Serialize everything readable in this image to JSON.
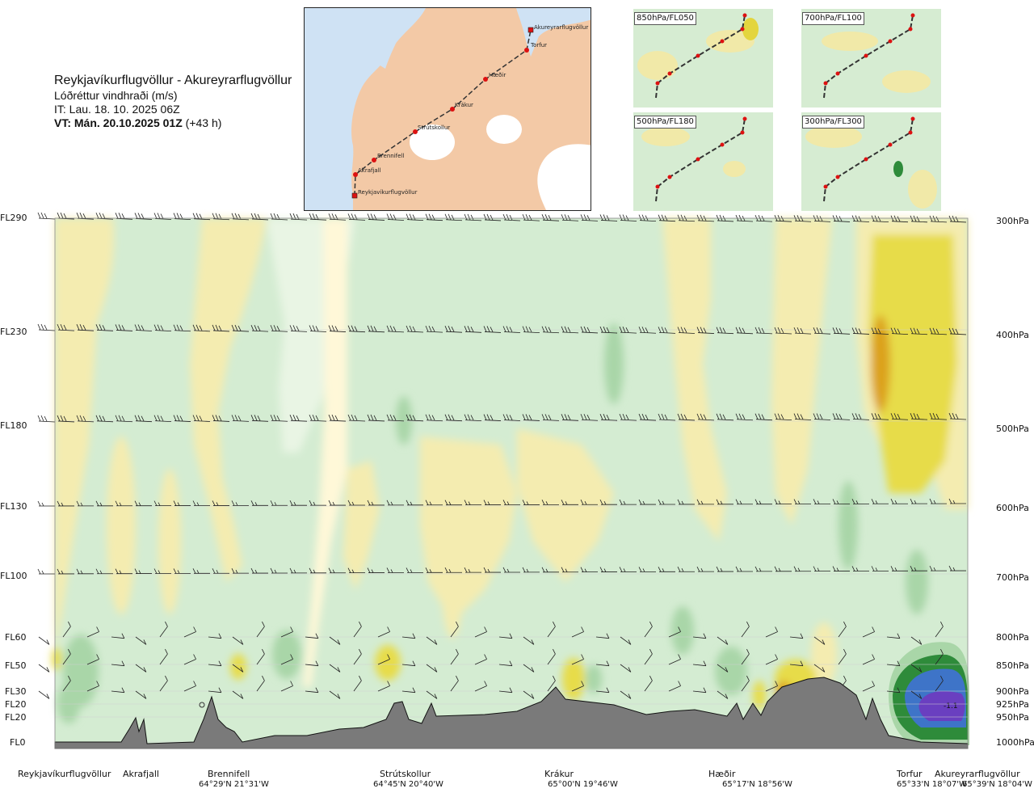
{
  "header": {
    "route": "Reykjavíkurflugvöllur - Akureyrarflugvöllur",
    "quantity": "Lóðréttur vindhraði (m/s)",
    "it_line": "IT: Lau. 18. 10. 2025 06Z",
    "vt_bold": "VT: Mán. 20.10.2025 01Z",
    "vt_lead": "(+43 h)"
  },
  "map": {
    "colors": {
      "land": "#f3c9a6",
      "sea": "#cfe2f4",
      "glacier": "#ffffff",
      "route": "#333333",
      "point": "#dd1111"
    },
    "points": [
      {
        "name": "Akureyrarflugvöllur"
      },
      {
        "name": "Torfur"
      },
      {
        "name": "Hæðir"
      },
      {
        "name": "Krákur"
      },
      {
        "name": "Strútskollur"
      },
      {
        "name": "Brennifell"
      },
      {
        "name": "Akrafjall"
      },
      {
        "name": "Reykjavíkurflugvöllur"
      }
    ]
  },
  "thumbnails": [
    {
      "label": "850hPa/FL050"
    },
    {
      "label": "700hPa/FL100"
    },
    {
      "label": "500hPa/FL180"
    },
    {
      "label": "300hPa/FL300"
    }
  ],
  "levels": [
    {
      "fl": "FL290",
      "hpa": "300hPa"
    },
    {
      "fl": "FL230",
      "hpa": "400hPa"
    },
    {
      "fl": "FL180",
      "hpa": "500hPa"
    },
    {
      "fl": "FL130",
      "hpa": "600hPa"
    },
    {
      "fl": "FL100",
      "hpa": "700hPa"
    },
    {
      "fl": "FL60",
      "hpa": "800hPa"
    },
    {
      "fl": "FL50",
      "hpa": "850hPa"
    },
    {
      "fl": "FL30",
      "hpa": "900hPa"
    },
    {
      "fl": "FL20",
      "hpa": "925hPa"
    },
    {
      "fl": "FL20",
      "hpa": "950hPa"
    },
    {
      "fl": "FL0",
      "hpa": "1000hPa"
    }
  ],
  "locations": [
    {
      "name": "Reykjavíkurflugvöllur",
      "coord": ""
    },
    {
      "name": "Akrafjall",
      "coord": ""
    },
    {
      "name": "Brennifell",
      "coord": "64°29'N 21°31'W"
    },
    {
      "name": "Strútskollur",
      "coord": "64°45'N 20°40'W"
    },
    {
      "name": "Krákur",
      "coord": "65°00'N 19°46'W"
    },
    {
      "name": "Hæðir",
      "coord": "65°17'N 18°56'W"
    },
    {
      "name": "Torfur",
      "coord": "65°33'N 18°07'W"
    },
    {
      "name": "Akureyrarflugvöllur",
      "coord": "65°39'N 18°04'W"
    }
  ],
  "annotation": {
    "value": "-1.1"
  },
  "palette": {
    "lightgreen": "#d4ecd2",
    "green": "#a9d6a8",
    "darkgreen": "#2e8b3a",
    "lightyellow": "#f4ecb0",
    "yellow": "#e7dc4a",
    "orange": "#dca21e",
    "blue": "#3e74c8",
    "purple": "#6a3fc0",
    "terrain": "#7a7a7a"
  }
}
